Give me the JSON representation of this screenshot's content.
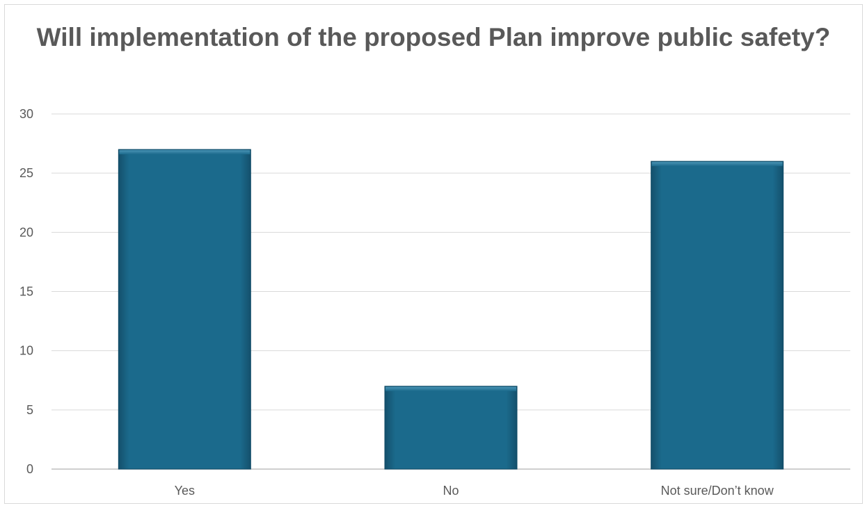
{
  "chart_data": {
    "type": "bar",
    "title": "Will implementation of the proposed Plan improve public safety?",
    "categories": [
      "Yes",
      "No",
      "Not sure/Don’t know"
    ],
    "values": [
      27,
      7,
      26
    ],
    "ylim": [
      0,
      30
    ],
    "yticks": [
      "0",
      "5",
      "10",
      "15",
      "20",
      "25",
      "30"
    ],
    "grid": true,
    "legend": "none",
    "colors": {
      "bar": "#1b6a8c",
      "bar_edge": "#0f4a66",
      "grid": "#d9d9d9",
      "text": "#595959"
    }
  }
}
